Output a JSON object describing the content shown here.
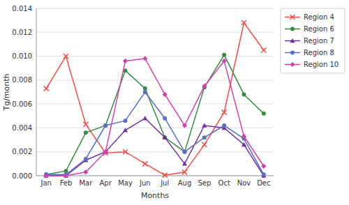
{
  "chart_data": {
    "type": "line",
    "categories": [
      "Jan",
      "Feb",
      "Mar",
      "Apr",
      "May",
      "Jun",
      "Jul",
      "Aug",
      "Sep",
      "Oct",
      "Nov",
      "Dec"
    ],
    "series": [
      {
        "name": "Region 4",
        "color": "#E8514A",
        "marker": "x",
        "values": [
          0.0073,
          0.01,
          0.0043,
          0.0019,
          0.002,
          0.001,
          5e-05,
          0.0003,
          0.0026,
          0.0053,
          0.0128,
          0.0105
        ]
      },
      {
        "name": "Region 6",
        "color": "#3A8A4A",
        "marker": "circle",
        "values": [
          0.0001,
          0.0004,
          0.0036,
          0.0042,
          0.0088,
          0.0073,
          0.0032,
          0.002,
          0.0074,
          0.0101,
          0.0068,
          0.0052
        ]
      },
      {
        "name": "Region 7",
        "color": "#7030A0",
        "marker": "triangle",
        "values": [
          0.0,
          0.0,
          0.0013,
          0.002,
          0.0038,
          0.0048,
          0.0032,
          0.001,
          0.0042,
          0.004,
          0.0026,
          0.0
        ]
      },
      {
        "name": "Region 8",
        "color": "#5A6FBF",
        "marker": "circle",
        "values": [
          0.0001,
          0.0001,
          0.0014,
          0.0042,
          0.0046,
          0.007,
          0.0048,
          0.002,
          0.0032,
          0.0042,
          0.0031,
          0.0001
        ]
      },
      {
        "name": "Region 10",
        "color": "#CC44AA",
        "marker": "diamond",
        "values": [
          0.0,
          0.0,
          0.0003,
          0.002,
          0.0096,
          0.0098,
          0.0068,
          0.0042,
          0.0075,
          0.0096,
          0.0033,
          0.0008
        ]
      }
    ],
    "xlabel": "Months",
    "ylabel": "Tg/month",
    "ylim": [
      0,
      0.014
    ],
    "yticks": [
      {
        "value": 0.0,
        "label": "0.000"
      },
      {
        "value": 0.002,
        "label": "0.002"
      },
      {
        "value": 0.004,
        "label": "0.004"
      },
      {
        "value": 0.006,
        "label": "0.006"
      },
      {
        "value": 0.008,
        "label": "0.008"
      },
      {
        "value": 0.01,
        "label": "0.010"
      },
      {
        "value": 0.012,
        "label": "0.012"
      },
      {
        "value": 0.014,
        "label": "0.014"
      }
    ],
    "grid": true,
    "legend": "right"
  }
}
